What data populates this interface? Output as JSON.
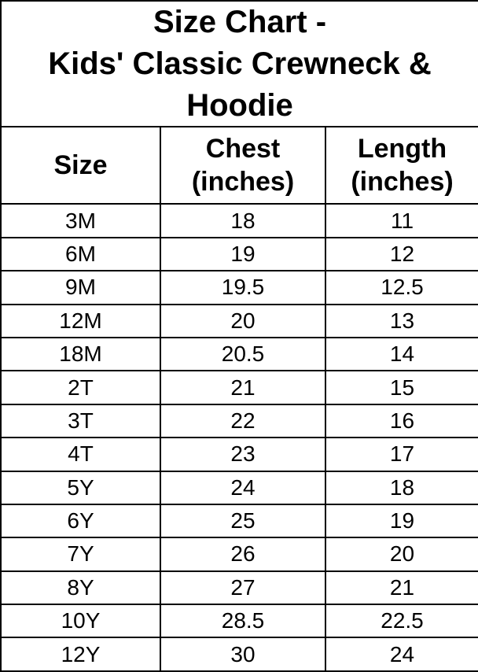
{
  "page": {
    "background_color": "#ffffff",
    "border_color": "#000000",
    "text_color": "#000000"
  },
  "table": {
    "title_lines": [
      "Size Chart -",
      "Kids' Classic Crewneck & Hoodie"
    ],
    "headers": [
      "Size",
      "Chest (inches)",
      "Length (inches)"
    ]
  },
  "chart_data": {
    "type": "table",
    "title": "Size Chart - Kids' Classic Crewneck & Hoodie",
    "columns": [
      "Size",
      "Chest (inches)",
      "Length (inches)"
    ],
    "rows": [
      [
        "3M",
        "18",
        "11"
      ],
      [
        "6M",
        "19",
        "12"
      ],
      [
        "9M",
        "19.5",
        "12.5"
      ],
      [
        "12M",
        "20",
        "13"
      ],
      [
        "18M",
        "20.5",
        "14"
      ],
      [
        "2T",
        "21",
        "15"
      ],
      [
        "3T",
        "22",
        "16"
      ],
      [
        "4T",
        "23",
        "17"
      ],
      [
        "5Y",
        "24",
        "18"
      ],
      [
        "6Y",
        "25",
        "19"
      ],
      [
        "7Y",
        "26",
        "20"
      ],
      [
        "8Y",
        "27",
        "21"
      ],
      [
        "10Y",
        "28.5",
        "22.5"
      ],
      [
        "12Y",
        "30",
        "24"
      ]
    ]
  }
}
